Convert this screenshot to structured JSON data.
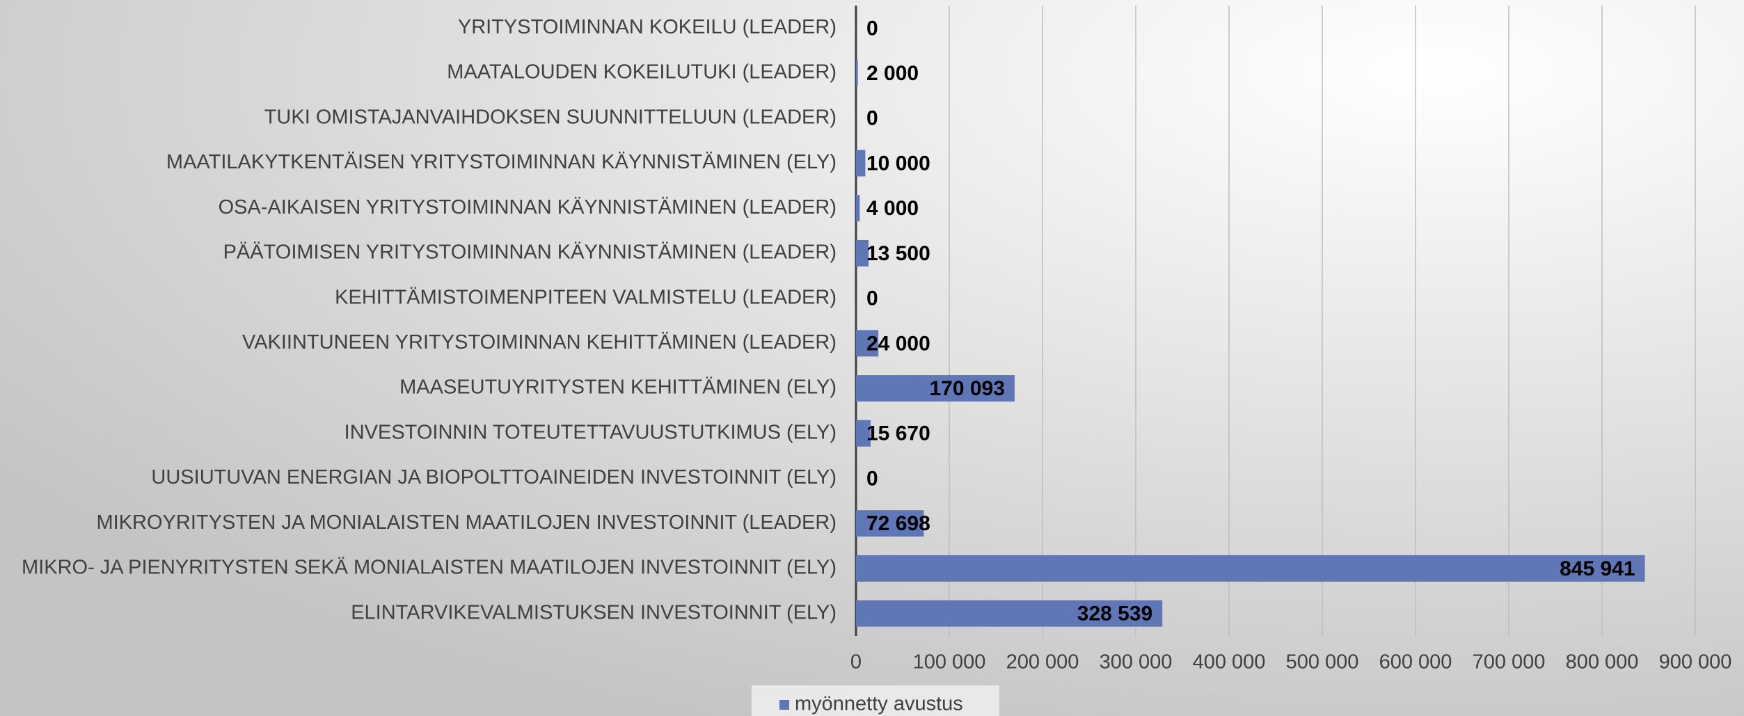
{
  "chart_data": {
    "type": "bar",
    "orientation": "horizontal",
    "categories": [
      "YRITYSTOIMINNAN KOKEILU (LEADER)",
      "MAATALOUDEN KOKEILUTUKI (LEADER)",
      "TUKI OMISTAJANVAIHDOKSEN SUUNNITTELUUN (LEADER)",
      "MAATILAKYTKENTÄISEN YRITYSTOIMINNAN KÄYNNISTÄMINEN (ELY)",
      "OSA-AIKAISEN YRITYSTOIMINNAN KÄYNNISTÄMINEN (LEADER)",
      "PÄÄTOIMISEN YRITYSTOIMINNAN KÄYNNISTÄMINEN (LEADER)",
      "KEHITTÄMISTOIMENPITEEN VALMISTELU (LEADER)",
      "VAKIINTUNEEN YRITYSTOIMINNAN KEHITTÄMINEN (LEADER)",
      "MAASEUTUYRITYSTEN KEHITTÄMINEN (ELY)",
      "INVESTOINNIN TOTEUTETTAVUUSTUTKIMUS (ELY)",
      "UUSIUTUVAN ENERGIAN JA BIOPOLTTOAINEIDEN INVESTOINNIT (ELY)",
      "MIKROYRITYSTEN JA MONIALAISTEN MAATILOJEN INVESTOINNIT (LEADER)",
      "MIKRO- JA PIENYRITYSTEN SEKÄ MONIALAISTEN MAATILOJEN INVESTOINNIT (ELY)",
      "ELINTARVIKEVALMISTUKSEN INVESTOINNIT (ELY)"
    ],
    "series": [
      {
        "name": "myönnetty avustus",
        "color": "#5f77b6",
        "values": [
          0,
          2000,
          0,
          10000,
          4000,
          13500,
          0,
          24000,
          170093,
          15670,
          0,
          72698,
          845941,
          328539
        ],
        "value_labels": [
          "0",
          "2 000",
          "0",
          "10 000",
          "4 000",
          "13 500",
          "0",
          "24 000",
          "170 093",
          "15 670",
          "0",
          "72 698",
          "845 941",
          "328 539"
        ]
      }
    ],
    "xlim": [
      0,
      900000
    ],
    "xticks": [
      0,
      {
        "value": 100000,
        "label": "100 000"
      },
      {
        "value": 200000,
        "label": "200 000"
      },
      {
        "value": 300000,
        "label": "300 000"
      },
      {
        "value": 400000,
        "label": "400 000"
      },
      {
        "value": 500000,
        "label": "500 000"
      },
      {
        "value": 600000,
        "label": "600 000"
      },
      {
        "value": 700000,
        "label": "700 000"
      },
      {
        "value": 800000,
        "label": "800 000"
      },
      {
        "value": 900000,
        "label": "900 000"
      }
    ],
    "grid": true,
    "legend": "bottom"
  }
}
